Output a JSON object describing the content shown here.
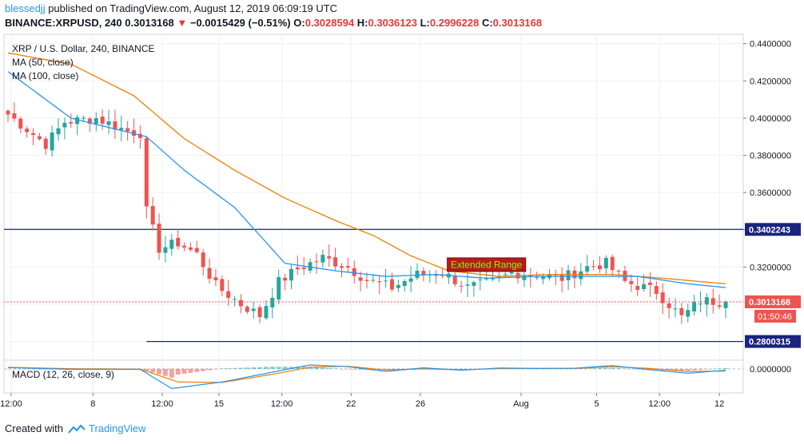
{
  "header": {
    "user": "blessedjj",
    "published_text": " published on TradingView.com, August 12, 2019 06:09:19 UTC",
    "symbol": "BINANCE:XRPUSD, 240",
    "last": "0.3013168",
    "arrow": "▼",
    "change": "−0.0015429 (−0.51%)",
    "o_label": "O:",
    "o_value": "0.3028594",
    "h_label": "H:",
    "h_value": "0.3036123",
    "l_label": "L:",
    "l_value": "0.2996228",
    "c_label": "C:",
    "c_value": "0.3013168"
  },
  "legend": {
    "title": "XRP / U.S. Dollar, 240, BINANCE",
    "ma50": "MA (50, close)",
    "ma100": "MA (100, close)",
    "macd": "MACD (12, 26, close, 9)"
  },
  "footer": {
    "created": "Created with",
    "brand": "TradingView"
  },
  "colors": {
    "up": "#26a69a",
    "down": "#ef5350",
    "ma50": "#2196f3",
    "ma100": "#f57c00",
    "level": "#1a237e",
    "price_line": "#ef5350",
    "grid": "#eef0f3"
  },
  "chart_data": {
    "type": "candlestick",
    "title": "XRP / U.S. Dollar, 240, BINANCE",
    "ylim": [
      0.27,
      0.445
    ],
    "y_ticks": [
      "0.4400000",
      "0.4200000",
      "0.4000000",
      "0.3800000",
      "0.3600000",
      "0.3400000",
      "0.3200000"
    ],
    "y_tick_values": [
      0.44,
      0.42,
      0.4,
      0.38,
      0.36,
      0.34,
      0.32
    ],
    "x_ticks": [
      "12:00",
      "8",
      "12:00",
      "15",
      "12:00",
      "22",
      "26",
      "Aug",
      "5",
      "12:00",
      "12"
    ],
    "x_tick_positions": [
      0.5,
      13.5,
      24.5,
      33.5,
      43.5,
      54.5,
      65.5,
      81.5,
      93.5,
      103.5,
      113
    ],
    "n_bars": 115,
    "price_anchors": [
      [
        0,
        0.402
      ],
      [
        6,
        0.386
      ],
      [
        9,
        0.398
      ],
      [
        14,
        0.4
      ],
      [
        19,
        0.393
      ],
      [
        21,
        0.392
      ],
      [
        22,
        0.35
      ],
      [
        24,
        0.33
      ],
      [
        27,
        0.333
      ],
      [
        30,
        0.327
      ],
      [
        33,
        0.31
      ],
      [
        37,
        0.3
      ],
      [
        40,
        0.294
      ],
      [
        43,
        0.312
      ],
      [
        46,
        0.319
      ],
      [
        50,
        0.325
      ],
      [
        54,
        0.32
      ],
      [
        57,
        0.313
      ],
      [
        61,
        0.309
      ],
      [
        65,
        0.316
      ],
      [
        69,
        0.317
      ],
      [
        73,
        0.309
      ],
      [
        77,
        0.312
      ],
      [
        80,
        0.317
      ],
      [
        84,
        0.316
      ],
      [
        88,
        0.314
      ],
      [
        92,
        0.32
      ],
      [
        95,
        0.322
      ],
      [
        98,
        0.312
      ],
      [
        103,
        0.307
      ],
      [
        107,
        0.293
      ],
      [
        110,
        0.302
      ],
      [
        114,
        0.3013
      ]
    ],
    "ma50_anchors": [
      [
        0,
        0.425
      ],
      [
        10,
        0.4
      ],
      [
        22,
        0.39
      ],
      [
        28,
        0.372
      ],
      [
        36,
        0.352
      ],
      [
        44,
        0.322
      ],
      [
        52,
        0.318
      ],
      [
        60,
        0.315
      ],
      [
        68,
        0.316
      ],
      [
        76,
        0.314
      ],
      [
        84,
        0.315
      ],
      [
        92,
        0.315
      ],
      [
        100,
        0.315
      ],
      [
        108,
        0.311
      ],
      [
        114,
        0.309
      ]
    ],
    "ma100_anchors": [
      [
        0,
        0.435
      ],
      [
        10,
        0.429
      ],
      [
        20,
        0.412
      ],
      [
        28,
        0.389
      ],
      [
        36,
        0.372
      ],
      [
        44,
        0.357
      ],
      [
        52,
        0.345
      ],
      [
        58,
        0.337
      ],
      [
        64,
        0.326
      ],
      [
        70,
        0.318
      ],
      [
        78,
        0.315
      ],
      [
        86,
        0.316
      ],
      [
        96,
        0.316
      ],
      [
        104,
        0.314
      ],
      [
        114,
        0.311
      ]
    ],
    "levels": [
      {
        "label": "0.3402243",
        "value": 0.3402243
      },
      {
        "label": "0.2800315",
        "value": 0.2800315,
        "start_bar": 22
      }
    ],
    "current_price": {
      "label": "0.3013168",
      "value": 0.3013168,
      "countdown": "01:50:46"
    },
    "annotation": {
      "text": "Extended Range",
      "bar": 76,
      "value": 0.3215
    },
    "macd": {
      "label": "MACD (12, 26, close, 9)",
      "zero_label": "0.0000000",
      "macd_anchors": [
        [
          0,
          0.0006
        ],
        [
          10,
          -0.0002
        ],
        [
          21,
          -0.0002
        ],
        [
          26,
          -0.009
        ],
        [
          34,
          -0.006
        ],
        [
          42,
          -0.0015
        ],
        [
          48,
          0.0018
        ],
        [
          54,
          0.001
        ],
        [
          60,
          -0.0012
        ],
        [
          66,
          0.0005
        ],
        [
          72,
          -0.0006
        ],
        [
          78,
          0.0004
        ],
        [
          84,
          0.0002
        ],
        [
          90,
          0.0003
        ],
        [
          96,
          0.0015
        ],
        [
          102,
          -0.0004
        ],
        [
          108,
          -0.002
        ],
        [
          114,
          -0.0006
        ]
      ],
      "signal_anchors": [
        [
          0,
          0.0007
        ],
        [
          10,
          0.0001
        ],
        [
          21,
          -0.0001
        ],
        [
          27,
          -0.006
        ],
        [
          34,
          -0.0062
        ],
        [
          42,
          -0.0025
        ],
        [
          48,
          0.0008
        ],
        [
          54,
          0.0012
        ],
        [
          60,
          -0.0005
        ],
        [
          66,
          0.0
        ],
        [
          72,
          -0.0004
        ],
        [
          78,
          0.0001
        ],
        [
          84,
          0.0002
        ],
        [
          90,
          0.0002
        ],
        [
          96,
          0.001
        ],
        [
          102,
          0.0002
        ],
        [
          108,
          -0.0012
        ],
        [
          114,
          -0.001
        ]
      ],
      "ylim": [
        -0.011,
        0.004
      ]
    }
  }
}
